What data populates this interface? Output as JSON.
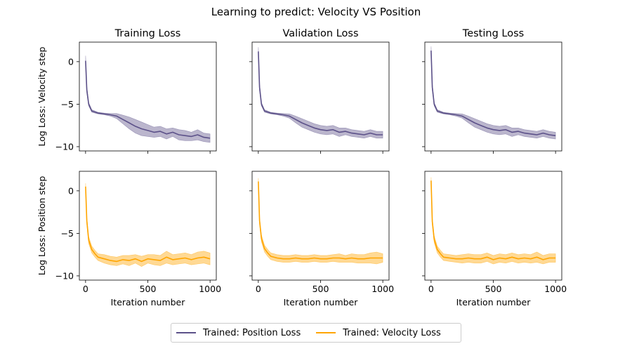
{
  "figure_title": "Learning to predict: Velocity VS Position",
  "colors": {
    "position": "#5c5189",
    "velocity": "#ffa500"
  },
  "legend": [
    {
      "label": "Trained: Position Loss",
      "color": "#5c5189"
    },
    {
      "label": "Trained: Velocity Loss",
      "color": "#ffa500"
    }
  ],
  "chart_data": [
    {
      "type": "line",
      "title": "Training Loss",
      "ylabel": "Log Loss: Velocity step",
      "xlabel": "",
      "series": "velocity_step",
      "xlim": [
        -50,
        1050
      ],
      "ylim": [
        -10.5,
        2.3
      ],
      "xticks": [
        0,
        500,
        1000
      ],
      "yticks": [
        0,
        -5,
        -10
      ],
      "x": [
        0,
        10,
        25,
        50,
        100,
        150,
        200,
        250,
        300,
        350,
        400,
        450,
        500,
        550,
        600,
        650,
        700,
        750,
        800,
        850,
        900,
        950,
        1000
      ],
      "mean": [
        0.1,
        -3.3,
        -5.0,
        -5.8,
        -6.05,
        -6.15,
        -6.25,
        -6.4,
        -6.8,
        -7.2,
        -7.6,
        -7.9,
        -8.1,
        -8.3,
        -8.2,
        -8.5,
        -8.3,
        -8.6,
        -8.7,
        -8.8,
        -8.6,
        -8.9,
        -9.0
      ],
      "band": [
        0.6,
        0.4,
        0.2,
        0.15,
        0.1,
        0.1,
        0.15,
        0.3,
        0.5,
        0.7,
        0.8,
        0.8,
        0.7,
        0.6,
        0.6,
        0.6,
        0.5,
        0.6,
        0.6,
        0.5,
        0.6,
        0.5,
        0.5
      ]
    },
    {
      "type": "line",
      "title": "Validation Loss",
      "ylabel": "",
      "xlabel": "",
      "series": "velocity_step",
      "xlim": [
        -50,
        1050
      ],
      "ylim": [
        -10.5,
        2.3
      ],
      "xticks": [
        0,
        500,
        1000
      ],
      "yticks": [
        0,
        -5,
        -10
      ],
      "x": [
        0,
        10,
        25,
        50,
        100,
        150,
        200,
        250,
        300,
        350,
        400,
        450,
        500,
        550,
        600,
        650,
        700,
        750,
        800,
        850,
        900,
        950,
        1000
      ],
      "mean": [
        1.2,
        -3.0,
        -5.0,
        -5.8,
        -6.05,
        -6.15,
        -6.25,
        -6.4,
        -6.8,
        -7.2,
        -7.5,
        -7.8,
        -8.0,
        -8.1,
        -8.0,
        -8.3,
        -8.2,
        -8.4,
        -8.5,
        -8.6,
        -8.4,
        -8.6,
        -8.6
      ],
      "band": [
        0.5,
        0.4,
        0.2,
        0.15,
        0.1,
        0.1,
        0.15,
        0.25,
        0.4,
        0.5,
        0.5,
        0.5,
        0.5,
        0.5,
        0.5,
        0.5,
        0.4,
        0.4,
        0.4,
        0.4,
        0.4,
        0.4,
        0.4
      ]
    },
    {
      "type": "line",
      "title": "Testing Loss",
      "ylabel": "",
      "xlabel": "",
      "series": "velocity_step",
      "xlim": [
        -50,
        1050
      ],
      "ylim": [
        -10.5,
        2.3
      ],
      "xticks": [
        0,
        500,
        1000
      ],
      "yticks": [
        0,
        -5,
        -10
      ],
      "x": [
        0,
        10,
        25,
        50,
        100,
        150,
        200,
        250,
        300,
        350,
        400,
        450,
        500,
        550,
        600,
        650,
        700,
        750,
        800,
        850,
        900,
        950,
        1000
      ],
      "mean": [
        1.3,
        -3.0,
        -5.0,
        -5.8,
        -6.05,
        -6.15,
        -6.25,
        -6.4,
        -6.8,
        -7.2,
        -7.5,
        -7.8,
        -8.0,
        -8.1,
        -8.0,
        -8.3,
        -8.2,
        -8.4,
        -8.5,
        -8.6,
        -8.4,
        -8.6,
        -8.7
      ],
      "band": [
        0.5,
        0.4,
        0.2,
        0.15,
        0.1,
        0.1,
        0.15,
        0.25,
        0.4,
        0.5,
        0.5,
        0.5,
        0.5,
        0.5,
        0.5,
        0.5,
        0.4,
        0.4,
        0.4,
        0.4,
        0.4,
        0.4,
        0.4
      ]
    },
    {
      "type": "line",
      "title": "",
      "ylabel": "Log Loss: Position step",
      "xlabel": "Iteration number",
      "series": "position_step",
      "xlim": [
        -50,
        1050
      ],
      "ylim": [
        -10.5,
        2.3
      ],
      "xticks": [
        0,
        500,
        1000
      ],
      "yticks": [
        0,
        -5,
        -10
      ],
      "x": [
        0,
        10,
        25,
        50,
        75,
        100,
        150,
        200,
        250,
        300,
        350,
        400,
        450,
        500,
        550,
        600,
        650,
        700,
        750,
        800,
        850,
        900,
        950,
        1000
      ],
      "mean": [
        0.5,
        -3.5,
        -5.8,
        -6.9,
        -7.4,
        -7.8,
        -8.0,
        -8.2,
        -8.3,
        -8.1,
        -8.2,
        -8.0,
        -8.3,
        -8.0,
        -8.1,
        -8.2,
        -7.8,
        -8.1,
        -8.0,
        -7.9,
        -8.1,
        -7.9,
        -7.8,
        -8.0
      ],
      "band": [
        0.4,
        0.4,
        0.4,
        0.4,
        0.4,
        0.4,
        0.5,
        0.5,
        0.5,
        0.5,
        0.6,
        0.5,
        0.6,
        0.5,
        0.6,
        0.6,
        0.7,
        0.6,
        0.6,
        0.6,
        0.6,
        0.7,
        0.7,
        0.7
      ]
    },
    {
      "type": "line",
      "title": "",
      "ylabel": "",
      "xlabel": "Iteration number",
      "series": "position_step",
      "xlim": [
        -50,
        1050
      ],
      "ylim": [
        -10.5,
        2.3
      ],
      "xticks": [
        0,
        500,
        1000
      ],
      "yticks": [
        0,
        -5,
        -10
      ],
      "x": [
        0,
        10,
        25,
        50,
        75,
        100,
        150,
        200,
        250,
        300,
        350,
        400,
        450,
        500,
        550,
        600,
        650,
        700,
        750,
        800,
        850,
        900,
        950,
        1000
      ],
      "mean": [
        1.1,
        -3.5,
        -5.6,
        -6.8,
        -7.3,
        -7.7,
        -7.9,
        -8.0,
        -8.0,
        -7.9,
        -8.0,
        -8.0,
        -7.9,
        -8.0,
        -8.0,
        -7.9,
        -7.9,
        -8.0,
        -7.9,
        -8.0,
        -8.0,
        -7.9,
        -7.9,
        -7.9
      ],
      "band": [
        0.4,
        0.4,
        0.4,
        0.4,
        0.4,
        0.4,
        0.4,
        0.4,
        0.4,
        0.4,
        0.4,
        0.4,
        0.4,
        0.4,
        0.4,
        0.4,
        0.5,
        0.4,
        0.5,
        0.5,
        0.5,
        0.6,
        0.7,
        0.5
      ]
    },
    {
      "type": "line",
      "title": "",
      "ylabel": "",
      "xlabel": "Iteration number",
      "series": "position_step",
      "xlim": [
        -50,
        1050
      ],
      "ylim": [
        -10.5,
        2.3
      ],
      "xticks": [
        0,
        500,
        1000
      ],
      "yticks": [
        0,
        -5,
        -10
      ],
      "x": [
        0,
        10,
        25,
        50,
        75,
        100,
        150,
        200,
        250,
        300,
        350,
        400,
        450,
        500,
        550,
        600,
        650,
        700,
        750,
        800,
        850,
        900,
        950,
        1000
      ],
      "mean": [
        1.2,
        -3.6,
        -5.7,
        -6.9,
        -7.4,
        -7.8,
        -7.9,
        -8.0,
        -8.0,
        -7.9,
        -8.0,
        -8.0,
        -7.8,
        -8.1,
        -7.9,
        -8.0,
        -7.8,
        -8.0,
        -7.9,
        -8.0,
        -7.8,
        -8.1,
        -7.9,
        -7.9
      ],
      "band": [
        0.4,
        0.4,
        0.4,
        0.4,
        0.4,
        0.4,
        0.4,
        0.4,
        0.5,
        0.5,
        0.5,
        0.5,
        0.5,
        0.5,
        0.5,
        0.5,
        0.5,
        0.5,
        0.5,
        0.5,
        0.6,
        0.5,
        0.5,
        0.5
      ]
    }
  ]
}
